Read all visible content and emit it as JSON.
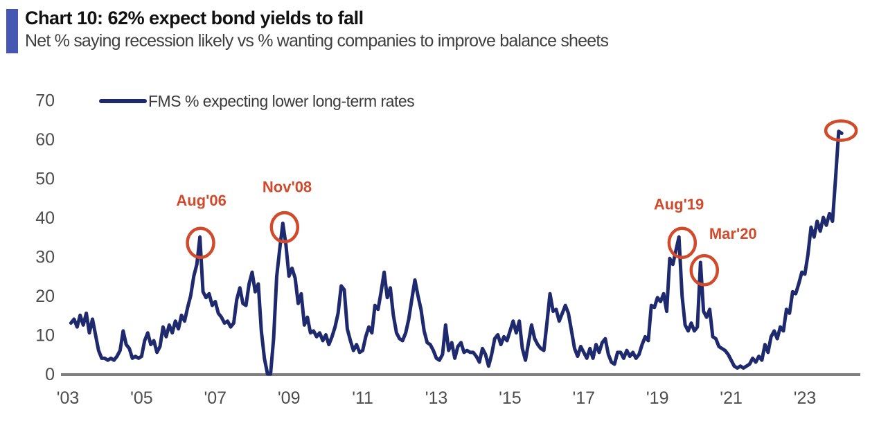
{
  "header": {
    "title": "Chart 10: 62% expect bond yields to fall",
    "subtitle": "Net % saying recession likely vs % wanting companies to improve balance sheets"
  },
  "legend": {
    "label": "FMS % expecting lower long-term rates"
  },
  "colors": {
    "accent_bar": "#4557b2",
    "line": "#1f2a6e",
    "annotation": "#d04a2b",
    "axis_line": "#7f7f7f",
    "tick_text": "#4d4d4d"
  },
  "chart_data": {
    "type": "line",
    "title": "Chart 10: 62% expect bond yields to fall",
    "subtitle": "Net % saying recession likely vs % wanting companies to improve balance sheets",
    "series_name": "FMS % expecting lower long-term rates",
    "unit": "net %",
    "frequency": "monthly",
    "start_month": "2003-02",
    "xlabel": "",
    "ylabel": "",
    "ylim": [
      0,
      70
    ],
    "grid": false,
    "legend_position": "top-left",
    "y_ticks": [
      0,
      10,
      20,
      30,
      40,
      50,
      60,
      70
    ],
    "x_ticks": [
      {
        "label": "'03",
        "year": 2003
      },
      {
        "label": "'05",
        "year": 2005
      },
      {
        "label": "'07",
        "year": 2007
      },
      {
        "label": "'09",
        "year": 2009
      },
      {
        "label": "'11",
        "year": 2011
      },
      {
        "label": "'13",
        "year": 2013
      },
      {
        "label": "'15",
        "year": 2015
      },
      {
        "label": "'17",
        "year": 2017
      },
      {
        "label": "'19",
        "year": 2019
      },
      {
        "label": "'21",
        "year": 2021
      },
      {
        "label": "'23",
        "year": 2023
      }
    ],
    "values": [
      13,
      14,
      12,
      15,
      12.5,
      15.5,
      10.5,
      14,
      10,
      6,
      4,
      4,
      3.5,
      4,
      3.5,
      4.5,
      6,
      11,
      7.5,
      6.5,
      4,
      4.5,
      4,
      4.5,
      8.5,
      10.5,
      7.5,
      8.5,
      5.5,
      7,
      12,
      9.5,
      12.5,
      10.5,
      13.5,
      11.5,
      15,
      13.5,
      17,
      20,
      25,
      28,
      35,
      21,
      19.5,
      20.5,
      17.5,
      18.5,
      15.5,
      14.5,
      13,
      13.5,
      12,
      13,
      19,
      22,
      18,
      17.5,
      23,
      26,
      21,
      23,
      11,
      4,
      0,
      0,
      9,
      25,
      32,
      38.5,
      33,
      25,
      27,
      24.5,
      18,
      20.5,
      12.5,
      14.5,
      10.5,
      11,
      9.5,
      10.5,
      8.5,
      10,
      7.5,
      9.5,
      12,
      15.5,
      22.5,
      21.5,
      11.5,
      8.5,
      6,
      7.5,
      5.5,
      6,
      9.5,
      12,
      10.5,
      17.5,
      16.5,
      21,
      26,
      19.5,
      22,
      15,
      10.5,
      9,
      8.5,
      10.5,
      14,
      19,
      24,
      20,
      16.5,
      11,
      8,
      7.5,
      6,
      4,
      3.5,
      5,
      12.5,
      6,
      8,
      4,
      7,
      8,
      5.5,
      6,
      5.5,
      5.5,
      4.5,
      3,
      6.5,
      5,
      2,
      5,
      9,
      10,
      7.5,
      9.5,
      8.5,
      11,
      13.5,
      10.5,
      13.5,
      6.5,
      3.5,
      8,
      12.5,
      9,
      7.5,
      6.5,
      6,
      13,
      20.5,
      16,
      16.5,
      13.5,
      15.5,
      17.5,
      15.5,
      11,
      6.5,
      4.5,
      7,
      5.5,
      4,
      6.5,
      4,
      7.5,
      5.5,
      8,
      9,
      5,
      3,
      2.5,
      5.5,
      5.5,
      4,
      6,
      4.5,
      5.5,
      4,
      5,
      7.5,
      9.5,
      8.5,
      17.5,
      17,
      19.5,
      18.5,
      20.5,
      16,
      29.5,
      28,
      31.5,
      35,
      20,
      12.5,
      11,
      13,
      11,
      12,
      28.5,
      16,
      14.5,
      16.5,
      9.5,
      9,
      7,
      6.5,
      6,
      5,
      3.5,
      2,
      1.5,
      2,
      1.5,
      2,
      2.5,
      4,
      3,
      4.5,
      3.5,
      7.5,
      5.5,
      9.5,
      11,
      9,
      12,
      11,
      16.5,
      15.5,
      21,
      20.5,
      23,
      26,
      25.5,
      30.5,
      37.5,
      35,
      39,
      36.5,
      40,
      38,
      41,
      39,
      50,
      62,
      61.5
    ],
    "annotations": [
      {
        "label": "Aug'06",
        "point_x": 2006.583,
        "point_y": 35,
        "circle_x": 2006.6,
        "circle_y": 33.5,
        "label_x": 2006.62,
        "label_y": 43.0
      },
      {
        "label": "Nov'08",
        "point_x": 2008.833,
        "point_y": 38.5,
        "circle_x": 2008.88,
        "circle_y": 37.5,
        "label_x": 2008.95,
        "label_y": 46.5
      },
      {
        "label": "Aug'19",
        "point_x": 2019.667,
        "point_y": 35,
        "circle_x": 2019.67,
        "circle_y": 33.5,
        "label_x": 2019.58,
        "label_y": 42.0
      },
      {
        "label": "Mar'20",
        "point_x": 2020.25,
        "point_y": 28.5,
        "circle_x": 2020.27,
        "circle_y": 26.5,
        "label_x": 2021.05,
        "label_y": 34.5
      }
    ],
    "end_circle": {
      "x": 2023.98,
      "y": 62.2
    }
  }
}
